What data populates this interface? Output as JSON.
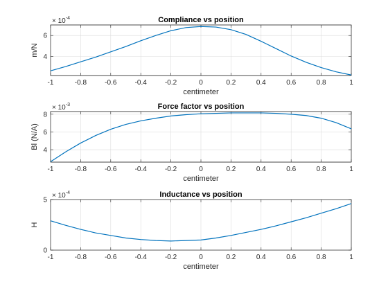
{
  "figure": {
    "background": "#ffffff",
    "line_color": "#0072bd"
  },
  "chart_data": [
    {
      "type": "line",
      "title": "Compliance vs position",
      "xlabel": "centimeter",
      "ylabel": "m/N",
      "exponent_base": "× 10",
      "exponent": "-4",
      "xlim": [
        -1,
        1
      ],
      "ylim": [
        2.2,
        7.0
      ],
      "xticks": [
        -1,
        -0.8,
        -0.6,
        -0.4,
        -0.2,
        0,
        0.2,
        0.4,
        0.6,
        0.8,
        1
      ],
      "xtick_labels": [
        "-1",
        "-0.8",
        "-0.6",
        "-0.4",
        "-0.2",
        "0",
        "0.2",
        "0.4",
        "0.6",
        "0.8",
        "1"
      ],
      "yticks": [
        4,
        6
      ],
      "ytick_labels": [
        "4",
        "6"
      ],
      "grid": true,
      "series": [
        {
          "x": [
            -1,
            -0.9,
            -0.8,
            -0.7,
            -0.6,
            -0.5,
            -0.4,
            -0.3,
            -0.2,
            -0.1,
            0,
            0.1,
            0.2,
            0.3,
            0.4,
            0.5,
            0.6,
            0.7,
            0.8,
            0.9,
            1
          ],
          "y": [
            2.65,
            3.05,
            3.5,
            3.95,
            4.45,
            4.95,
            5.5,
            6.0,
            6.45,
            6.75,
            6.85,
            6.8,
            6.55,
            6.1,
            5.45,
            4.75,
            4.05,
            3.45,
            2.95,
            2.55,
            2.25
          ]
        }
      ]
    },
    {
      "type": "line",
      "title": "Force factor vs position",
      "xlabel": "centimeter",
      "ylabel": "Bl (N/A)",
      "exponent_base": "× 10",
      "exponent": "-3",
      "xlim": [
        -1,
        1
      ],
      "ylim": [
        2.6,
        8.3
      ],
      "xticks": [
        -1,
        -0.8,
        -0.6,
        -0.4,
        -0.2,
        0,
        0.2,
        0.4,
        0.6,
        0.8,
        1
      ],
      "xtick_labels": [
        "-1",
        "-0.8",
        "-0.6",
        "-0.4",
        "-0.2",
        "0",
        "0.2",
        "0.4",
        "0.6",
        "0.8",
        "1"
      ],
      "yticks": [
        4,
        6,
        8
      ],
      "ytick_labels": [
        "4",
        "6",
        "8"
      ],
      "grid": true,
      "series": [
        {
          "x": [
            -1,
            -0.9,
            -0.8,
            -0.7,
            -0.6,
            -0.5,
            -0.4,
            -0.3,
            -0.2,
            -0.1,
            0,
            0.1,
            0.2,
            0.3,
            0.4,
            0.5,
            0.6,
            0.7,
            0.8,
            0.9,
            1
          ],
          "y": [
            2.65,
            3.75,
            4.75,
            5.6,
            6.3,
            6.85,
            7.25,
            7.55,
            7.8,
            7.95,
            8.05,
            8.1,
            8.15,
            8.15,
            8.15,
            8.1,
            8.0,
            7.85,
            7.55,
            7.05,
            6.35
          ]
        }
      ]
    },
    {
      "type": "line",
      "title": "Inductance vs position",
      "xlabel": "centimeter",
      "ylabel": "H",
      "exponent_base": "× 10",
      "exponent": "-4",
      "xlim": [
        -1,
        1
      ],
      "ylim": [
        0,
        5
      ],
      "xticks": [
        -1,
        -0.8,
        -0.6,
        -0.4,
        -0.2,
        0,
        0.2,
        0.4,
        0.6,
        0.8,
        1
      ],
      "xtick_labels": [
        "-1",
        "-0.8",
        "-0.6",
        "-0.4",
        "-0.2",
        "0",
        "0.2",
        "0.4",
        "0.6",
        "0.8",
        "1"
      ],
      "yticks": [
        0,
        5
      ],
      "ytick_labels": [
        "0",
        "5"
      ],
      "grid": true,
      "series": [
        {
          "x": [
            -1,
            -0.9,
            -0.8,
            -0.7,
            -0.6,
            -0.5,
            -0.4,
            -0.3,
            -0.2,
            -0.1,
            0,
            0.1,
            0.2,
            0.3,
            0.4,
            0.5,
            0.6,
            0.7,
            0.8,
            0.9,
            1
          ],
          "y": [
            2.9,
            2.45,
            2.05,
            1.7,
            1.45,
            1.2,
            1.05,
            0.95,
            0.9,
            0.95,
            1.0,
            1.2,
            1.45,
            1.75,
            2.05,
            2.4,
            2.8,
            3.2,
            3.65,
            4.1,
            4.6
          ]
        }
      ]
    }
  ]
}
